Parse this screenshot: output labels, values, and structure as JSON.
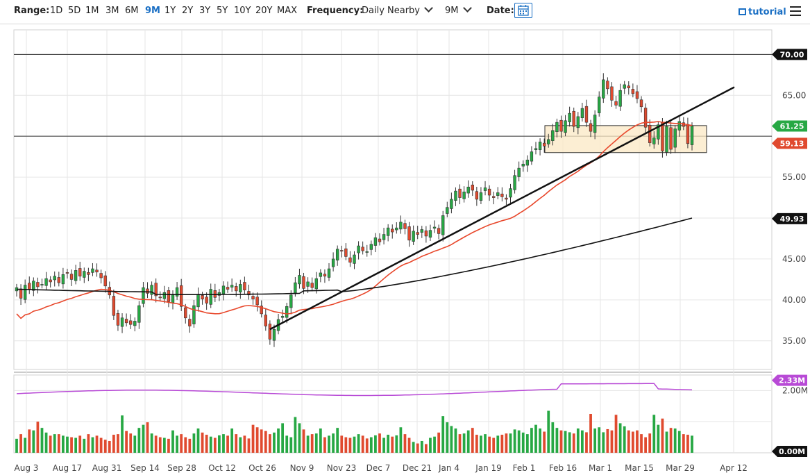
{
  "toolbar": {
    "range_label": "Range:",
    "ranges": [
      "1D",
      "5D",
      "1M",
      "3M",
      "6M",
      "9M",
      "1Y",
      "2Y",
      "3Y",
      "5Y",
      "10Y",
      "20Y",
      "MAX"
    ],
    "active_range": "9M",
    "frequency_label": "Frequency:",
    "frequency_value": "Daily Nearby",
    "period_value": "9M",
    "date_label": "Date:",
    "tutorial_label": "tutorial"
  },
  "colors": {
    "up": "#27a844",
    "down": "#e04a2f",
    "ma50": "#e8472b",
    "ma200": "#111111",
    "volume_avg": "#b84ad6",
    "zone_fill": "#fbe8c4",
    "zone_stroke": "#333333"
  },
  "chart_data": {
    "type": "candlestick",
    "x_ticks": [
      "Aug 3",
      "Aug 17",
      "Aug 31",
      "Sep 14",
      "Sep 28",
      "Oct 12",
      "Oct 26",
      "Nov 9",
      "Nov 23",
      "Dec 7",
      "Dec 21",
      "Jan 4",
      "Jan 19",
      "Feb 1",
      "Feb 16",
      "Mar 1",
      "Mar 15",
      "Mar 29",
      "Apr 12"
    ],
    "price_ylim": [
      31.5,
      73
    ],
    "price_ticks": [
      70,
      65,
      60,
      55,
      50,
      45,
      40,
      35
    ],
    "price_tick_labels": [
      "70.00",
      "65.00",
      "",
      "55.00",
      "",
      "45.00",
      "40.00",
      "35.00"
    ],
    "horizontal_lines": [
      70,
      60
    ],
    "badges": [
      {
        "label": "70.00",
        "value": 70,
        "color": "#111111"
      },
      {
        "label": "61.25",
        "value": 61.25,
        "color": "#27a844"
      },
      {
        "label": "59.13",
        "value": 59.13,
        "color": "#e04a2f"
      },
      {
        "label": "49.93",
        "value": 49.93,
        "color": "#111111"
      }
    ],
    "closes": [
      41.5,
      40.2,
      41.8,
      41.3,
      42.3,
      41.6,
      41.9,
      42.6,
      42.2,
      42.9,
      42.1,
      43.1,
      43.3,
      42.5,
      43.6,
      42.9,
      43.5,
      43.1,
      43.8,
      43.4,
      42.7,
      41.7,
      40.6,
      38.1,
      36.9,
      37.8,
      37.2,
      37.0,
      37.4,
      39.3,
      41.5,
      40.8,
      41.8,
      40.5,
      40.3,
      40.9,
      39.8,
      40.6,
      41.5,
      39.2,
      37.8,
      36.8,
      39.3,
      40.7,
      40.1,
      39.6,
      41.3,
      40.3,
      40.9,
      41.7,
      41.3,
      41.8,
      41.1,
      41.9,
      41.2,
      40.6,
      40.1,
      39.4,
      38.3,
      36.8,
      35.2,
      36.4,
      37.6,
      38.0,
      39.2,
      40.6,
      42.1,
      43.0,
      41.4,
      42.2,
      41.5,
      42.6,
      43.3,
      42.9,
      43.8,
      45.0,
      46.2,
      46.0,
      45.3,
      44.6,
      45.5,
      46.6,
      46.0,
      45.9,
      46.8,
      47.6,
      47.1,
      48.0,
      48.8,
      48.3,
      48.8,
      49.5,
      48.7,
      47.3,
      48.4,
      48.0,
      48.6,
      47.8,
      48.5,
      48.9,
      48.1,
      50.3,
      51.3,
      52.3,
      53.3,
      52.5,
      53.2,
      53.8,
      53.4,
      52.3,
      53.1,
      53.7,
      52.8,
      52.5,
      53.1,
      52.6,
      52.3,
      53.6,
      55.2,
      56.1,
      56.6,
      57.1,
      58.1,
      58.5,
      59.3,
      58.8,
      59.6,
      60.7,
      61.7,
      60.6,
      61.9,
      62.8,
      61.2,
      62.4,
      63.4,
      61.7,
      60.6,
      62.6,
      64.8,
      66.9,
      65.8,
      64.4,
      63.8,
      65.6,
      66.3,
      65.9,
      65.2,
      64.6,
      63.6,
      61.1,
      59.2,
      59.8,
      61.4,
      58.2,
      61.2,
      58.4,
      60.9,
      61.8,
      61.2,
      59.1,
      61.25
    ],
    "volumes": [
      0.45,
      0.6,
      0.48,
      0.75,
      0.72,
      1.0,
      0.8,
      0.65,
      0.55,
      0.6,
      0.6,
      0.55,
      0.52,
      0.5,
      0.48,
      0.55,
      0.45,
      0.6,
      0.5,
      0.55,
      0.48,
      0.42,
      0.38,
      0.58,
      0.6,
      1.2,
      0.7,
      0.62,
      0.55,
      0.8,
      0.9,
      0.98,
      0.62,
      0.55,
      0.5,
      0.48,
      0.45,
      0.72,
      0.55,
      0.6,
      0.5,
      0.45,
      0.62,
      0.78,
      0.65,
      0.58,
      0.52,
      0.48,
      0.56,
      0.6,
      0.55,
      0.78,
      0.6,
      0.5,
      0.55,
      0.46,
      0.9,
      0.82,
      0.75,
      0.7,
      0.6,
      0.65,
      0.78,
      0.95,
      0.55,
      0.5,
      1.15,
      0.95,
      0.75,
      0.55,
      0.6,
      0.62,
      0.78,
      0.5,
      0.55,
      0.62,
      0.8,
      0.55,
      0.5,
      0.48,
      0.52,
      0.6,
      0.55,
      0.46,
      0.5,
      0.56,
      0.62,
      0.48,
      0.58,
      0.52,
      0.56,
      0.82,
      0.6,
      0.48,
      0.35,
      0.3,
      0.38,
      0.28,
      0.48,
      0.52,
      0.65,
      1.18,
      0.98,
      0.86,
      0.78,
      0.6,
      0.62,
      0.72,
      0.8,
      0.58,
      0.55,
      0.6,
      0.52,
      0.48,
      0.55,
      0.58,
      0.62,
      0.62,
      0.75,
      0.72,
      0.65,
      0.6,
      0.8,
      0.9,
      0.78,
      0.68,
      1.35,
      0.98,
      0.8,
      0.72,
      0.7,
      0.66,
      0.62,
      0.78,
      0.72,
      0.66,
      1.25,
      0.78,
      0.82,
      0.66,
      0.76,
      0.72,
      1.22,
      0.95,
      0.85,
      0.72,
      0.68,
      0.72,
      0.6,
      0.5,
      0.62,
      1.22,
      0.9,
      1.1,
      0.68,
      0.8,
      0.78,
      0.7,
      0.6,
      0.58,
      0.55
    ],
    "volume_ticks": [
      "2.00M",
      "0.00M"
    ],
    "volume_badges": [
      {
        "label": "2.33M",
        "color": "#b84ad6"
      },
      {
        "label": "0.00M",
        "color": "#111111"
      }
    ]
  }
}
